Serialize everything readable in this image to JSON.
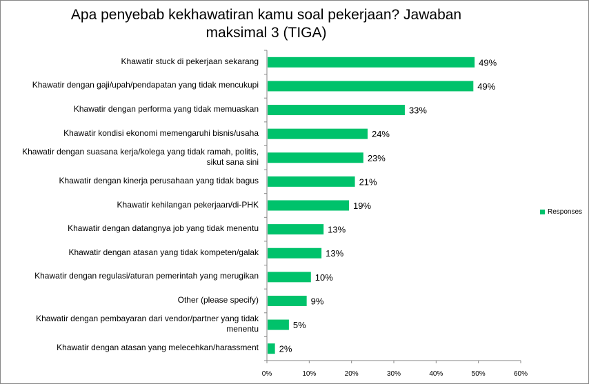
{
  "chart_data": {
    "type": "bar",
    "orientation": "horizontal",
    "title": "Apa penyebab kekhawatiran kamu soal pekerjaan? Jawaban maksimal 3 (TIGA)",
    "categories": [
      "Khawatir stuck di pekerjaan sekarang",
      "Khawatir dengan gaji/upah/pendapatan yang tidak mencukupi",
      "Khawatir dengan performa yang tidak memuaskan",
      "Khawatir kondisi ekonomi memengaruhi bisnis/usaha",
      "Khawatir dengan suasana kerja/kolega yang tidak ramah, politis,\nsikut sana sini",
      "Khawatir dengan kinerja perusahaan yang tidak bagus",
      "Khawatir kehilangan pekerjaan/di-PHK",
      "Khawatir dengan datangnya job yang tidak menentu",
      "Khawatir dengan atasan yang tidak kompeten/galak",
      "Khawatir dengan regulasi/aturan pemerintah yang merugikan",
      "Other (please specify)",
      "Khawatir dengan pembayaran dari vendor/partner yang tidak\nmenentu",
      "Khawatir dengan atasan yang melecehkan/harassment"
    ],
    "series": [
      {
        "name": "Responses",
        "values": [
          49.1,
          48.8,
          32.6,
          23.8,
          22.8,
          20.8,
          19.4,
          13.4,
          12.9,
          10.4,
          9.4,
          5.2,
          1.9
        ],
        "labels": [
          "49%",
          "49%",
          "33%",
          "24%",
          "23%",
          "21%",
          "19%",
          "13%",
          "13%",
          "10%",
          "9%",
          "5%",
          "2%"
        ],
        "color": "#00c26b"
      }
    ],
    "xlim": [
      0,
      60
    ],
    "xticks": [
      "0%",
      "10%",
      "20%",
      "30%",
      "40%",
      "50%",
      "60%"
    ],
    "grid": false,
    "legend": "right"
  }
}
